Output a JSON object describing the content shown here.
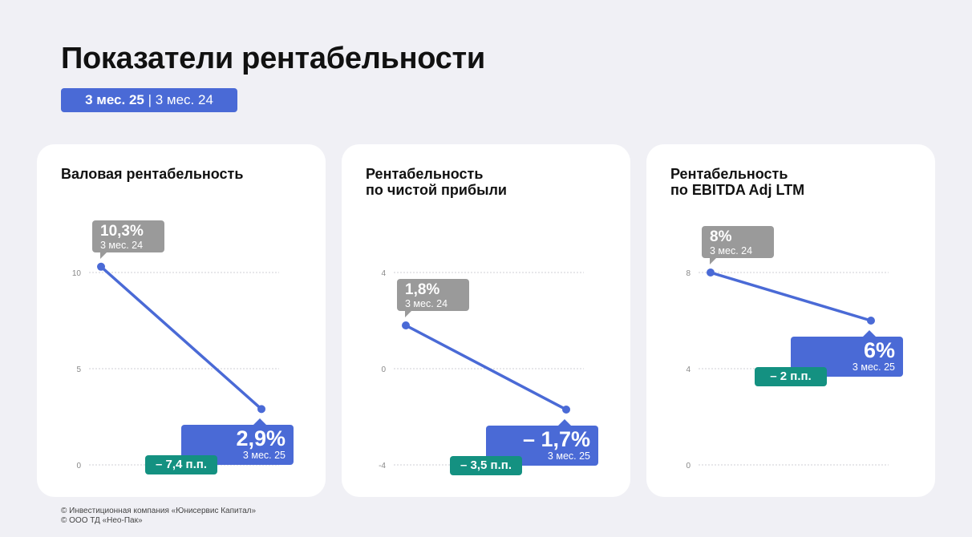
{
  "title": "Показатели рентабельности",
  "period_current": "3 мес. 25",
  "period_separator": " | ",
  "period_previous": "3 мес. 24",
  "colors": {
    "line": "#4a6ad6",
    "previous": "#9a9a9a",
    "delta": "#149181"
  },
  "chart_data": [
    {
      "type": "line",
      "title": "Валовая рентабельность",
      "categories": [
        "3 мес. 24",
        "3 мес. 25"
      ],
      "values": [
        10.3,
        2.9
      ],
      "ylim": [
        0,
        10
      ],
      "yticks": [
        "0",
        "5",
        "10"
      ],
      "grid": true,
      "previous_label": "10,3%",
      "current_label": "2,9%",
      "delta_label": "– 7,4 п.п."
    },
    {
      "type": "line",
      "title": "Рентабельность\nпо чистой прибыли",
      "categories": [
        "3 мес. 24",
        "3 мес. 25"
      ],
      "values": [
        1.8,
        -1.7
      ],
      "ylim": [
        -4,
        4
      ],
      "yticks": [
        "-4",
        "0",
        "4"
      ],
      "grid": true,
      "previous_label": "1,8%",
      "current_label": "– 1,7%",
      "delta_label": "– 3,5 п.п."
    },
    {
      "type": "line",
      "title": "Рентабельность\nпо EBITDA Adj LTM",
      "categories": [
        "3 мес. 24",
        "3 мес. 25"
      ],
      "values": [
        8,
        6
      ],
      "ylim": [
        0,
        8
      ],
      "yticks": [
        "0",
        "4",
        "8"
      ],
      "grid": true,
      "previous_label": "8%",
      "current_label": "6%",
      "delta_label": "– 2 п.п."
    }
  ],
  "footer": [
    "© Инвестиционная компания «Юнисервис Капитал»",
    "© ООО ТД «Нео-Пак»"
  ]
}
